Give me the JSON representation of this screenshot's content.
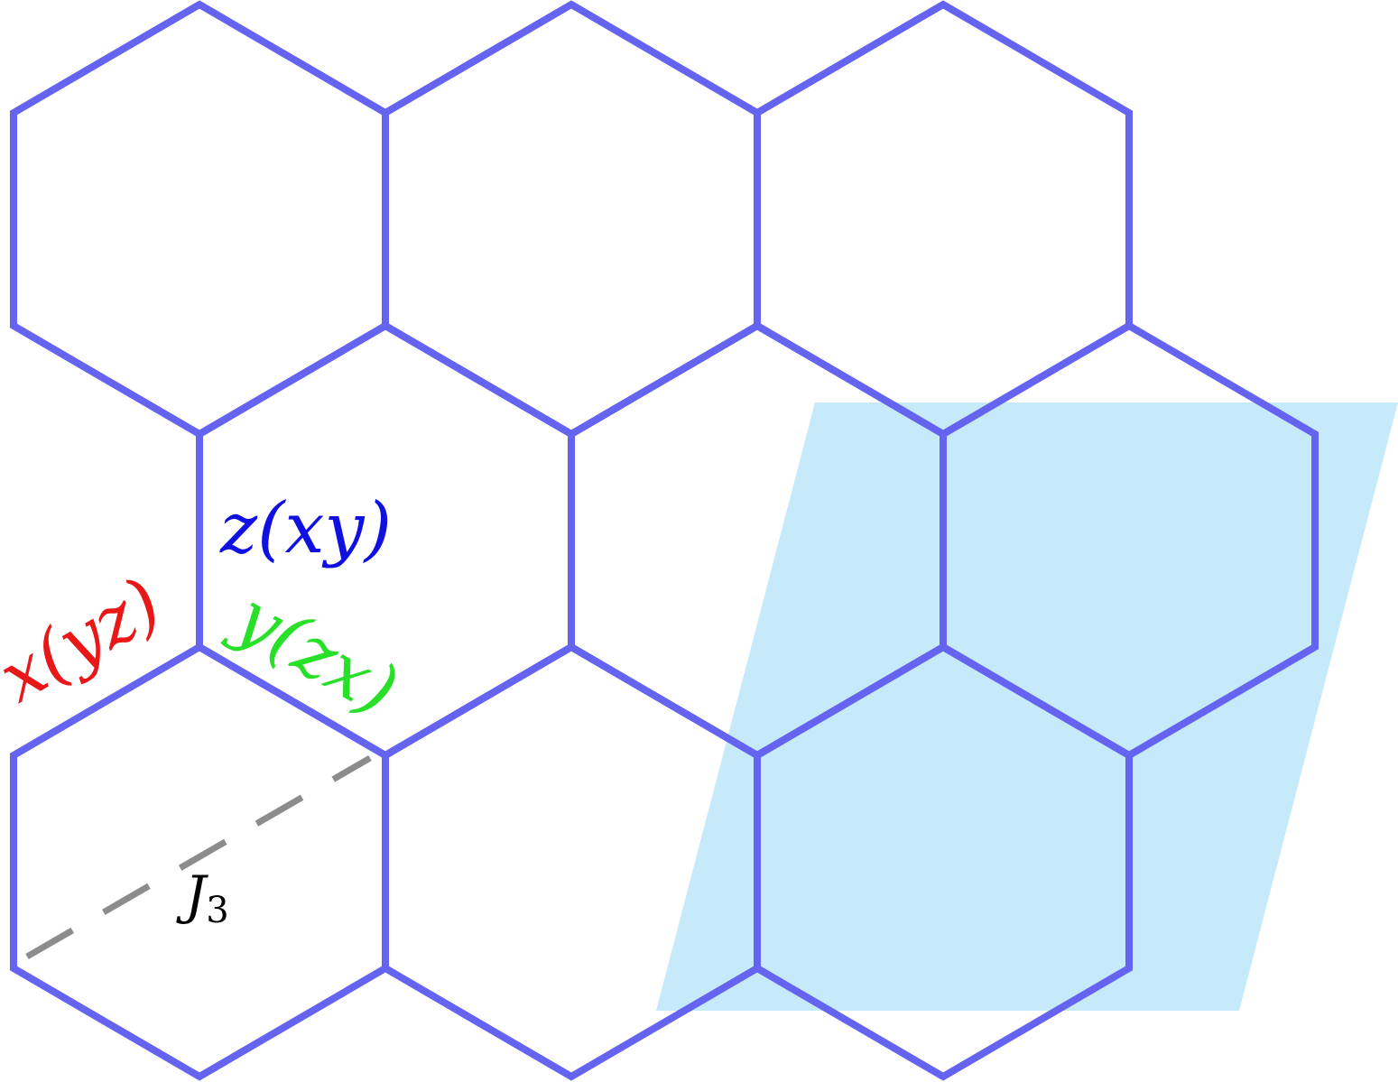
{
  "diagram": {
    "type": "honeycomb-lattice",
    "colors": {
      "bond": "#6464f0",
      "unit_cell_fill": "#c6eafa",
      "label_z": "#1010e0",
      "label_x": "#e81818",
      "label_y": "#28e028",
      "label_J3": "#000000",
      "J3_bond": "#8c8c8c"
    },
    "bond_labels": {
      "z_bond": "z(xy)",
      "x_bond": "x(yz)",
      "y_bond": "y(zx)"
    },
    "coupling_labels": {
      "third_neighbor": "J",
      "third_neighbor_sub": "3"
    },
    "shaded_region": "unit-cell"
  }
}
